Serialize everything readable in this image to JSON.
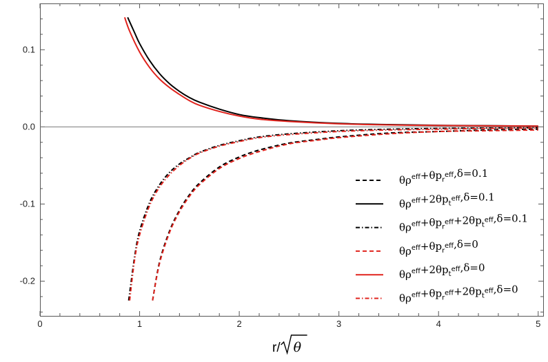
{
  "chart_data": {
    "type": "line",
    "title": "",
    "xlabel": "r/√θ",
    "xlabel_parts": {
      "prefix": "r/",
      "radicand": "θ"
    },
    "ylabel": "",
    "xlim": [
      0,
      5.05
    ],
    "ylim": [
      -0.245,
      0.16
    ],
    "xticks": [
      0,
      1,
      2,
      3,
      4,
      5
    ],
    "xtick_labels": [
      "0",
      "1",
      "2",
      "3",
      "4",
      "5"
    ],
    "yticks": [
      0.1,
      0.0,
      -0.1,
      -0.2
    ],
    "ytick_labels": [
      "0.1",
      "0.0",
      "-0.1",
      "-0.2"
    ],
    "grid": false,
    "zero_line": true,
    "legend_position": "lower-right",
    "series": [
      {
        "name": "θρeff+θpreff,δ=0.1",
        "legend": [
          [
            "t",
            "θρ"
          ],
          [
            "sup",
            "eff"
          ],
          [
            "t",
            "+θp"
          ],
          [
            "sub",
            "r"
          ],
          [
            "sup",
            "eff"
          ],
          [
            "t",
            ",δ=0.1"
          ]
        ],
        "color": "#000000",
        "dash": "dashed",
        "x": [
          1.13,
          1.2,
          1.3,
          1.4,
          1.5,
          1.6,
          1.8,
          2.0,
          2.2,
          2.5,
          2.8,
          3.0,
          3.5,
          4.0,
          4.5,
          5.0
        ],
        "y": [
          -0.225,
          -0.175,
          -0.135,
          -0.108,
          -0.088,
          -0.073,
          -0.052,
          -0.039,
          -0.03,
          -0.021,
          -0.016,
          -0.013,
          -0.008,
          -0.006,
          -0.004,
          -0.003
        ]
      },
      {
        "name": "θρeff+2θpteff,δ=0.1",
        "legend": [
          [
            "t",
            "θρ"
          ],
          [
            "sup",
            "eff"
          ],
          [
            "t",
            "+2θp"
          ],
          [
            "sub",
            "t"
          ],
          [
            "sup",
            "eff"
          ],
          [
            "t",
            ",δ=0.1"
          ]
        ],
        "color": "#000000",
        "dash": "solid",
        "x": [
          0.88,
          0.95,
          1.0,
          1.1,
          1.2,
          1.3,
          1.4,
          1.5,
          1.6,
          1.8,
          2.0,
          2.2,
          2.5,
          3.0,
          3.5,
          4.0,
          4.5,
          5.0
        ],
        "y": [
          0.142,
          0.122,
          0.108,
          0.086,
          0.069,
          0.056,
          0.046,
          0.038,
          0.032,
          0.023,
          0.016,
          0.012,
          0.008,
          0.0045,
          0.003,
          0.002,
          0.0015,
          0.001
        ]
      },
      {
        "name": "θρeff+θpreff+2θpteff,δ=0.1",
        "legend": [
          [
            "t",
            "θρ"
          ],
          [
            "sup",
            "eff"
          ],
          [
            "t",
            "+θp"
          ],
          [
            "sub",
            "r"
          ],
          [
            "sup",
            "eff"
          ],
          [
            "t",
            "+2θp"
          ],
          [
            "sub",
            "t"
          ],
          [
            "sup",
            "eff"
          ],
          [
            "t",
            ",δ=0.1"
          ]
        ],
        "color": "#000000",
        "dash": "dashdot",
        "x": [
          0.89,
          0.95,
          1.0,
          1.1,
          1.2,
          1.3,
          1.4,
          1.5,
          1.6,
          1.8,
          2.0,
          2.2,
          2.5,
          3.0,
          3.5,
          4.0,
          4.5,
          5.0
        ],
        "y": [
          -0.225,
          -0.168,
          -0.135,
          -0.098,
          -0.075,
          -0.059,
          -0.048,
          -0.04,
          -0.033,
          -0.024,
          -0.018,
          -0.013,
          -0.009,
          -0.005,
          -0.003,
          -0.002,
          -0.0015,
          -0.001
        ]
      },
      {
        "name": "θρeff+θpreff,δ=0",
        "legend": [
          [
            "t",
            "θρ"
          ],
          [
            "sup",
            "eff"
          ],
          [
            "t",
            "+θp"
          ],
          [
            "sub",
            "r"
          ],
          [
            "sup",
            "eff"
          ],
          [
            "t",
            ",δ=0"
          ]
        ],
        "color": "#e0231d",
        "dash": "dashed",
        "x": [
          1.13,
          1.2,
          1.3,
          1.4,
          1.5,
          1.6,
          1.8,
          2.0,
          2.2,
          2.5,
          2.8,
          3.0,
          3.5,
          4.0,
          4.5,
          5.0
        ],
        "y": [
          -0.225,
          -0.177,
          -0.137,
          -0.11,
          -0.09,
          -0.075,
          -0.054,
          -0.041,
          -0.032,
          -0.022,
          -0.017,
          -0.014,
          -0.009,
          -0.006,
          -0.005,
          -0.004
        ]
      },
      {
        "name": "θρeff+2θpteff,δ=0",
        "legend": [
          [
            "t",
            "θρ"
          ],
          [
            "sup",
            "eff"
          ],
          [
            "t",
            "+2θp"
          ],
          [
            "sub",
            "t"
          ],
          [
            "sup",
            "eff"
          ],
          [
            "t",
            ",δ=0"
          ]
        ],
        "color": "#e0231d",
        "dash": "solid",
        "x": [
          0.85,
          0.9,
          1.0,
          1.1,
          1.2,
          1.3,
          1.4,
          1.5,
          1.6,
          1.8,
          2.0,
          2.2,
          2.5,
          3.0,
          3.5,
          4.0,
          4.5,
          5.0
        ],
        "y": [
          0.142,
          0.124,
          0.097,
          0.077,
          0.062,
          0.051,
          0.042,
          0.034,
          0.028,
          0.02,
          0.014,
          0.01,
          0.007,
          0.004,
          0.0025,
          0.0018,
          0.0013,
          0.001
        ]
      },
      {
        "name": "θρeff+θpreff+2θpteff,δ=0",
        "legend": [
          [
            "t",
            "θρ"
          ],
          [
            "sup",
            "eff"
          ],
          [
            "t",
            "+θp"
          ],
          [
            "sub",
            "r"
          ],
          [
            "sup",
            "eff"
          ],
          [
            "t",
            "+2θp"
          ],
          [
            "sub",
            "t"
          ],
          [
            "sup",
            "eff"
          ],
          [
            "t",
            ",δ=0"
          ]
        ],
        "color": "#e0231d",
        "dash": "dashdot",
        "x": [
          0.9,
          0.95,
          1.0,
          1.1,
          1.2,
          1.3,
          1.4,
          1.5,
          1.6,
          1.8,
          2.0,
          2.2,
          2.5,
          3.0,
          3.5,
          4.0,
          4.5,
          5.0
        ],
        "y": [
          -0.225,
          -0.172,
          -0.14,
          -0.102,
          -0.078,
          -0.062,
          -0.05,
          -0.041,
          -0.034,
          -0.025,
          -0.019,
          -0.014,
          -0.01,
          -0.006,
          -0.004,
          -0.003,
          -0.002,
          -0.0015
        ]
      }
    ]
  }
}
